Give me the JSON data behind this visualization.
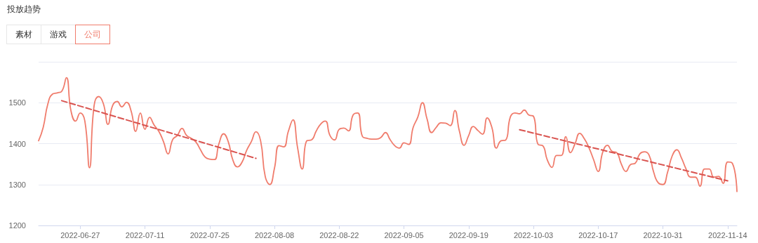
{
  "chart_data": {
    "type": "line",
    "title": "投放趋势",
    "annotations": [
      "素材",
      "游戏",
      "公司"
    ],
    "xlim": [
      "2022-06-18",
      "2022-11-16"
    ],
    "xticks": [
      "2022-06-27",
      "2022-07-11",
      "2022-07-25",
      "2022-08-08",
      "2022-08-22",
      "2022-09-05",
      "2022-09-19",
      "2022-10-03",
      "2022-10-17",
      "2022-10-31",
      "2022-11-14"
    ],
    "ylim": [
      1200,
      1600
    ],
    "yticks": [
      1200,
      1300,
      1400,
      1500,
      {
        "value": 1600,
        "label": null
      }
    ],
    "grid": "y",
    "marker": "none",
    "series": [
      {
        "color": "#f07c6c",
        "line_style": "solid",
        "x": [
          "2022-06-18",
          "2022-06-19",
          "2022-06-20",
          "2022-06-21",
          "2022-06-22",
          "2022-06-23",
          "2022-06-24",
          "2022-06-25",
          "2022-06-26",
          "2022-06-27",
          "2022-06-28",
          "2022-06-29",
          "2022-06-30",
          "2022-07-01",
          "2022-07-02",
          "2022-07-03",
          "2022-07-04",
          "2022-07-05",
          "2022-07-06",
          "2022-07-07",
          "2022-07-08",
          "2022-07-09",
          "2022-07-10",
          "2022-07-11",
          "2022-07-12",
          "2022-07-13",
          "2022-07-14",
          "2022-07-15",
          "2022-07-16",
          "2022-07-17",
          "2022-07-18",
          "2022-07-19",
          "2022-07-20",
          "2022-07-21",
          "2022-07-22",
          "2022-07-23",
          "2022-07-24",
          "2022-07-25",
          "2022-07-26",
          "2022-07-27",
          "2022-07-28",
          "2022-07-29",
          "2022-07-30",
          "2022-07-31",
          "2022-08-01",
          "2022-08-02",
          "2022-08-03",
          "2022-08-04",
          "2022-08-05",
          "2022-08-06",
          "2022-08-07",
          "2022-08-08",
          "2022-08-09",
          "2022-08-10",
          "2022-08-11",
          "2022-08-12",
          "2022-08-13",
          "2022-08-14",
          "2022-08-15",
          "2022-08-16",
          "2022-08-17",
          "2022-08-18",
          "2022-08-19",
          "2022-08-20",
          "2022-08-21",
          "2022-08-22",
          "2022-08-23",
          "2022-08-24",
          "2022-08-25",
          "2022-08-26",
          "2022-08-27",
          "2022-08-28",
          "2022-08-29",
          "2022-08-30",
          "2022-08-31",
          "2022-09-01",
          "2022-09-02",
          "2022-09-03",
          "2022-09-04",
          "2022-09-05",
          "2022-09-06",
          "2022-09-07",
          "2022-09-08",
          "2022-09-09",
          "2022-09-10",
          "2022-09-11",
          "2022-09-12",
          "2022-09-13",
          "2022-09-14",
          "2022-09-15",
          "2022-09-16",
          "2022-09-17",
          "2022-09-18",
          "2022-09-19",
          "2022-09-20",
          "2022-09-21",
          "2022-09-22",
          "2022-09-23",
          "2022-09-24",
          "2022-09-25",
          "2022-09-26",
          "2022-09-27",
          "2022-09-28",
          "2022-09-29",
          "2022-09-30",
          "2022-10-01",
          "2022-10-02",
          "2022-10-03",
          "2022-10-04",
          "2022-10-05",
          "2022-10-06",
          "2022-10-07",
          "2022-10-08",
          "2022-10-09",
          "2022-10-10",
          "2022-10-11",
          "2022-10-12",
          "2022-10-13",
          "2022-10-14",
          "2022-10-15",
          "2022-10-16",
          "2022-10-17",
          "2022-10-18",
          "2022-10-19",
          "2022-10-20",
          "2022-10-21",
          "2022-10-22",
          "2022-10-23",
          "2022-10-24",
          "2022-10-25",
          "2022-10-26",
          "2022-10-27",
          "2022-10-28",
          "2022-10-29",
          "2022-10-30",
          "2022-10-31",
          "2022-11-01",
          "2022-11-02",
          "2022-11-03",
          "2022-11-04",
          "2022-11-05",
          "2022-11-06",
          "2022-11-07",
          "2022-11-08",
          "2022-11-09",
          "2022-11-10",
          "2022-11-11",
          "2022-11-12",
          "2022-11-13",
          "2022-11-14",
          "2022-11-15",
          "2022-11-16"
        ],
        "values": [
          1407,
          1440,
          1497,
          1521,
          1524,
          1528,
          1561,
          1480,
          1455,
          1475,
          1455,
          1341,
          1493,
          1515,
          1498,
          1447,
          1493,
          1503,
          1490,
          1501,
          1480,
          1430,
          1475,
          1435,
          1464,
          1445,
          1430,
          1405,
          1375,
          1410,
          1420,
          1437,
          1420,
          1413,
          1404,
          1385,
          1367,
          1362,
          1361,
          1400,
          1424,
          1405,
          1360,
          1343,
          1355,
          1384,
          1405,
          1429,
          1407,
          1320,
          1300,
          1340,
          1395,
          1392,
          1430,
          1458,
          1390,
          1338,
          1407,
          1409,
          1430,
          1448,
          1455,
          1420,
          1409,
          1435,
          1438,
          1431,
          1470,
          1475,
          1418,
          1413,
          1411,
          1411,
          1415,
          1427,
          1410,
          1395,
          1389,
          1402,
          1398,
          1440,
          1465,
          1500,
          1460,
          1427,
          1440,
          1451,
          1450,
          1444,
          1481,
          1430,
          1396,
          1420,
          1442,
          1432,
          1423,
          1463,
          1440,
          1389,
          1407,
          1409,
          1465,
          1475,
          1473,
          1482,
          1470,
          1467,
          1398,
          1395,
          1360,
          1342,
          1371,
          1371,
          1417,
          1378,
          1400,
          1425,
          1412,
          1390,
          1361,
          1332,
          1380,
          1396,
          1381,
          1378,
          1350,
          1332,
          1349,
          1352,
          1375,
          1380,
          1372,
          1330,
          1304,
          1300,
          1330,
          1370,
          1385,
          1365,
          1338,
          1318,
          1318,
          1296,
          1338,
          1338,
          1318,
          1320,
          1303,
          1355,
          1352,
          1283
        ]
      },
      {
        "color": "#d9534f",
        "line_style": "dashed",
        "x": [
          "2022-06-23",
          "2022-08-04"
        ],
        "values": [
          1505,
          1364
        ]
      },
      {
        "color": "#d9534f",
        "line_style": "dashed",
        "x": [
          "2022-09-30",
          "2022-11-14"
        ],
        "values": [
          1434,
          1309
        ]
      }
    ]
  }
}
